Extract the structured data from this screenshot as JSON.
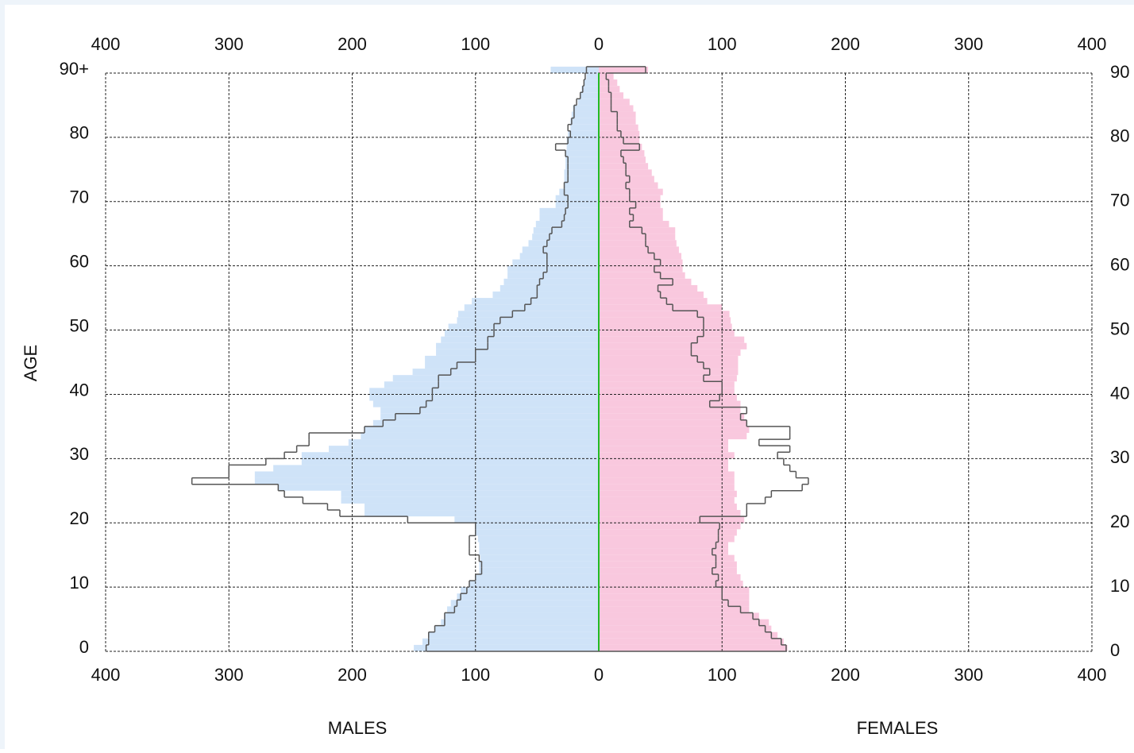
{
  "chart_data": {
    "type": "population-pyramid",
    "y_label": "AGE",
    "ages": [
      0,
      1,
      2,
      3,
      4,
      5,
      6,
      7,
      8,
      9,
      10,
      11,
      12,
      13,
      14,
      15,
      16,
      17,
      18,
      19,
      20,
      21,
      22,
      23,
      24,
      25,
      26,
      27,
      28,
      29,
      30,
      31,
      32,
      33,
      34,
      35,
      36,
      37,
      38,
      39,
      40,
      41,
      42,
      43,
      44,
      45,
      46,
      47,
      48,
      49,
      50,
      51,
      52,
      53,
      54,
      55,
      56,
      57,
      58,
      59,
      60,
      61,
      62,
      63,
      64,
      65,
      66,
      67,
      68,
      69,
      70,
      71,
      72,
      73,
      74,
      75,
      76,
      77,
      78,
      79,
      80,
      81,
      82,
      83,
      84,
      85,
      86,
      87,
      88,
      89,
      90
    ],
    "ylim": [
      0,
      90
    ],
    "yticks": [
      0,
      10,
      20,
      30,
      40,
      50,
      60,
      70,
      80,
      {
        "value": 90,
        "label": "90+"
      }
    ],
    "y2ticks": [
      0,
      10,
      20,
      30,
      40,
      50,
      60,
      70,
      80,
      90
    ],
    "grid": true,
    "center_color": "#22bb22",
    "outline_color": "#555555",
    "males": {
      "label": "MALES",
      "color": "#cfe3f8",
      "xlim": [
        400,
        0
      ],
      "xticks": [
        400,
        300,
        200,
        100,
        0
      ],
      "values": [
        150,
        143,
        138,
        133,
        128,
        125,
        123,
        120,
        115,
        112,
        105,
        100,
        97,
        97,
        96,
        97,
        97,
        98,
        100,
        100,
        117,
        190,
        190,
        209,
        209,
        260,
        279,
        279,
        264,
        241,
        241,
        219,
        203,
        193,
        190,
        183,
        177,
        177,
        183,
        186,
        186,
        174,
        167,
        151,
        141,
        141,
        132,
        132,
        128,
        125,
        122,
        115,
        114,
        109,
        103,
        86,
        80,
        77,
        74,
        74,
        70,
        64,
        62,
        57,
        54,
        53,
        51,
        48,
        48,
        35,
        35,
        32,
        28,
        28,
        28,
        27,
        27,
        27,
        26,
        26,
        25,
        23,
        23,
        22,
        21,
        17,
        15,
        14,
        12,
        10,
        39
      ],
      "outline_values": [
        140,
        138,
        138,
        133,
        125,
        125,
        117,
        115,
        112,
        107,
        105,
        100,
        95,
        95,
        97,
        105,
        105,
        105,
        100,
        100,
        155,
        210,
        220,
        240,
        255,
        260,
        330,
        300,
        300,
        270,
        255,
        245,
        235,
        235,
        190,
        175,
        165,
        145,
        140,
        135,
        135,
        130,
        130,
        120,
        115,
        100,
        100,
        90,
        90,
        85,
        85,
        80,
        70,
        60,
        55,
        50,
        50,
        48,
        45,
        42,
        42,
        42,
        45,
        42,
        40,
        38,
        30,
        28,
        27,
        25,
        25,
        28,
        28,
        25,
        25,
        25,
        25,
        27,
        35,
        25,
        23,
        25,
        22,
        20,
        20,
        18,
        15,
        13,
        12,
        11,
        10
      ]
    },
    "females": {
      "label": "FEMALES",
      "color": "#f9c8de",
      "xlim": [
        0,
        400
      ],
      "xticks": [
        0,
        100,
        200,
        300,
        400
      ],
      "values": [
        153,
        150,
        145,
        140,
        138,
        130,
        122,
        122,
        122,
        122,
        117,
        115,
        112,
        112,
        110,
        105,
        105,
        110,
        112,
        115,
        118,
        115,
        112,
        110,
        112,
        110,
        110,
        110,
        105,
        105,
        110,
        105,
        105,
        120,
        122,
        120,
        118,
        115,
        115,
        112,
        110,
        110,
        112,
        113,
        113,
        113,
        115,
        120,
        118,
        110,
        108,
        107,
        106,
        100,
        88,
        85,
        80,
        75,
        70,
        68,
        68,
        67,
        65,
        63,
        62,
        62,
        57,
        52,
        52,
        50,
        50,
        52,
        48,
        45,
        43,
        40,
        38,
        37,
        35,
        33,
        33,
        32,
        30,
        30,
        28,
        25,
        20,
        17,
        15,
        12,
        40
      ],
      "outline_values": [
        152,
        148,
        140,
        135,
        130,
        125,
        115,
        105,
        100,
        100,
        95,
        97,
        92,
        95,
        95,
        92,
        95,
        97,
        97,
        98,
        82,
        120,
        120,
        135,
        140,
        165,
        170,
        160,
        155,
        150,
        145,
        155,
        130,
        155,
        155,
        120,
        115,
        120,
        90,
        98,
        100,
        100,
        85,
        90,
        85,
        80,
        75,
        75,
        80,
        85,
        85,
        85,
        80,
        60,
        55,
        50,
        48,
        60,
        50,
        45,
        50,
        45,
        40,
        38,
        38,
        35,
        25,
        28,
        25,
        30,
        25,
        25,
        22,
        25,
        22,
        22,
        20,
        18,
        33,
        20,
        18,
        15,
        15,
        15,
        10,
        10,
        10,
        8,
        8,
        6,
        38
      ]
    }
  }
}
